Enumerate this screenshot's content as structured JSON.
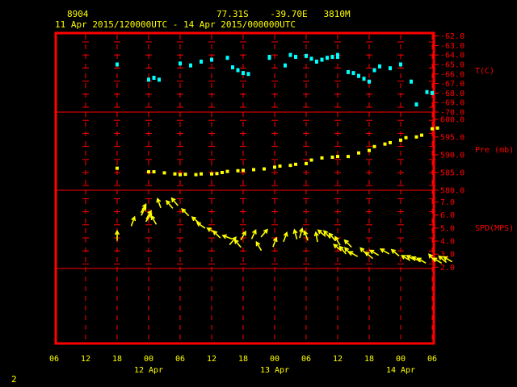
{
  "header": {
    "station": "8904",
    "location": "77.31S    -39.70E   3810M",
    "period": "11 Apr 2015/120000UTC - 14 Apr 2015/000000UTC"
  },
  "footer": {
    "page": "2"
  },
  "colors": {
    "frame": "#ff0000",
    "grid": "#ff0000",
    "temp": "#00ffff",
    "pres": "#ffff00",
    "wind": "#ffff00",
    "text": "#ffff00"
  },
  "chart_data": [
    {
      "type": "scatter",
      "panel": "temperature",
      "ylabel": "T(C)",
      "ylim": [
        -70,
        -61.7
      ],
      "yticks": [
        -62,
        -63,
        -64,
        -65,
        -66,
        -67,
        -68,
        -69,
        -70
      ],
      "ytick_labels": [
        "-62.0",
        "-63.0",
        "-64.0",
        "-65.0",
        "-66.0",
        "-67.0",
        "-68.0",
        "-69.0",
        "-70.0"
      ],
      "x_hours": [
        12,
        18,
        19,
        20,
        24,
        26,
        28,
        30,
        33,
        34,
        35,
        36,
        37,
        41,
        41,
        44,
        45,
        46,
        48,
        49,
        50,
        51,
        52,
        53,
        54,
        54,
        56,
        57,
        58,
        59,
        60,
        61,
        62,
        64,
        66,
        68,
        69,
        71,
        72
      ],
      "values": [
        -65.0,
        -66.6,
        -66.4,
        -66.6,
        -64.9,
        -65.1,
        -64.7,
        -64.5,
        -64.3,
        -65.3,
        -65.6,
        -65.9,
        -66.0,
        -64.3,
        -64.2,
        -65.1,
        -64.0,
        -64.2,
        -64.1,
        -64.4,
        -64.7,
        -64.5,
        -64.3,
        -64.2,
        -64.0,
        -64.2,
        -65.8,
        -65.9,
        -66.2,
        -66.5,
        -66.8,
        -65.6,
        -65.2,
        -65.4,
        -65.0,
        -66.8,
        -69.2,
        -67.9,
        -68.0
      ]
    },
    {
      "type": "scatter",
      "panel": "pressure",
      "ylabel": "Pre (mb)",
      "ylim": [
        580,
        602
      ],
      "yticks": [
        580,
        585,
        590,
        595,
        600
      ],
      "ytick_labels": [
        "580.0",
        "585.0",
        "590.0",
        "595.0",
        "600.0"
      ],
      "x_hours": [
        12,
        18,
        19,
        21,
        23,
        24,
        25,
        27,
        28,
        30,
        31,
        32,
        33,
        35,
        36,
        38,
        40,
        42,
        43,
        45,
        46,
        48,
        49,
        51,
        53,
        54,
        56,
        58,
        60,
        61,
        63,
        64,
        66,
        67,
        69,
        70,
        72,
        73
      ],
      "values": [
        586.2,
        585.2,
        585.2,
        584.9,
        584.6,
        584.4,
        584.5,
        584.4,
        584.6,
        584.6,
        584.7,
        585.0,
        585.3,
        585.5,
        585.6,
        585.8,
        586.0,
        586.5,
        586.8,
        587.0,
        587.3,
        587.5,
        588.5,
        589.1,
        589.3,
        589.5,
        589.5,
        590.5,
        591.2,
        592.3,
        593.0,
        593.4,
        594.1,
        594.8,
        595.0,
        595.5,
        597.3,
        597.5
      ]
    },
    {
      "type": "scatter",
      "panel": "wind",
      "ylabel": "SPD(MPS)",
      "ylim": [
        1.9,
        7.9
      ],
      "yticks": [
        2,
        3,
        4,
        5,
        6,
        7
      ],
      "ytick_labels": [
        "2.0",
        "3.0",
        "4.0",
        "5.0",
        "6.0",
        "7.0"
      ],
      "x_hours": [
        12,
        15,
        17,
        17,
        18,
        18,
        19,
        20,
        22,
        23,
        25,
        27,
        28,
        30,
        31,
        33,
        34,
        35,
        36,
        38,
        39,
        40,
        42,
        44,
        46,
        47,
        48,
        50,
        51,
        52,
        53,
        54,
        54,
        55,
        56,
        56,
        57,
        59,
        60,
        61,
        63,
        65,
        67,
        68,
        69,
        70,
        72,
        73,
        74,
        75
      ],
      "values": [
        4.4,
        5.5,
        6.3,
        6.5,
        6.0,
        5.8,
        5.6,
        6.9,
        6.8,
        7.0,
        6.2,
        5.6,
        5.2,
        4.8,
        4.5,
        4.3,
        4.0,
        3.8,
        4.4,
        4.5,
        3.6,
        4.6,
        3.9,
        4.3,
        4.5,
        4.6,
        4.4,
        4.3,
        4.6,
        4.5,
        4.3,
        3.5,
        4.0,
        3.3,
        3.8,
        3.2,
        3.0,
        3.2,
        2.9,
        3.1,
        3.2,
        3.1,
        2.7,
        2.7,
        2.6,
        2.5,
        2.7,
        2.5,
        2.6,
        2.6
      ],
      "direction_deg": [
        0,
        20,
        25,
        30,
        30,
        35,
        330,
        340,
        320,
        320,
        315,
        310,
        305,
        300,
        315,
        290,
        40,
        320,
        30,
        25,
        330,
        40,
        20,
        20,
        345,
        15,
        340,
        350,
        310,
        320,
        320,
        310,
        330,
        320,
        315,
        320,
        300,
        315,
        310,
        300,
        300,
        310,
        300,
        300,
        300,
        300,
        320,
        300,
        310,
        300
      ]
    }
  ],
  "x_axis": {
    "tick_labels": [
      "06",
      "12",
      "18",
      "00",
      "06",
      "12",
      "18",
      "00",
      "06",
      "12",
      "18",
      "00",
      "06"
    ],
    "day_labels": [
      "12 Apr",
      "13 Apr",
      "14 Apr"
    ]
  }
}
